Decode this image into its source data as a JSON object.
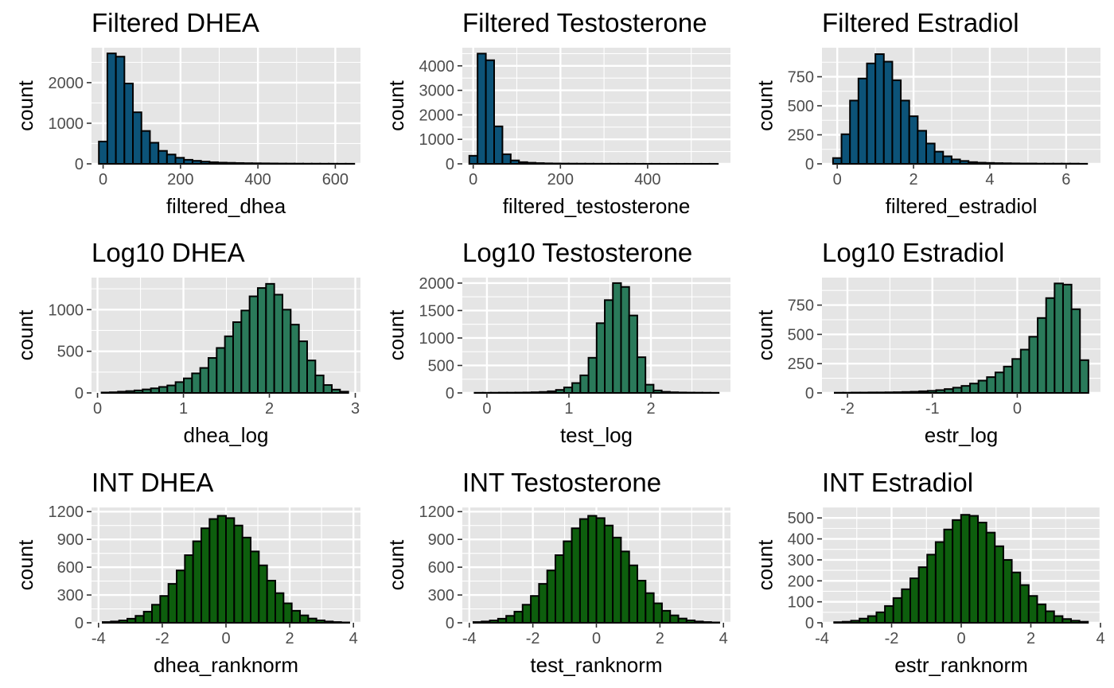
{
  "colors": {
    "filtered": "#0c5378",
    "log": "#2a7a5a",
    "int": "#0d5e0d",
    "panel_background": "#e5e5e5"
  },
  "chart_data": [
    {
      "type": "bar",
      "title": "Filtered DHEA",
      "xlabel": "filtered_dhea",
      "ylabel": "count",
      "fill": "filtered",
      "xlim": [
        -30,
        665
      ],
      "ylim": [
        0,
        2860
      ],
      "xticks": [
        0,
        200,
        400,
        600
      ],
      "xtick_labels": [
        "0",
        "200",
        "400",
        "600"
      ],
      "yticks": [
        0,
        1000,
        2000
      ],
      "ytick_labels": [
        "0",
        "1000",
        "2000"
      ],
      "bin_start": -11,
      "bin_width": 22,
      "values": [
        550,
        2720,
        2640,
        1980,
        1270,
        810,
        520,
        320,
        230,
        150,
        100,
        75,
        55,
        40,
        30,
        25,
        20,
        16,
        14,
        12,
        10,
        8,
        7,
        6,
        5,
        5,
        4,
        4,
        3,
        3
      ]
    },
    {
      "type": "bar",
      "title": "Filtered Testosterone",
      "xlabel": "filtered_testosterone",
      "ylabel": "count",
      "fill": "filtered",
      "xlim": [
        -25,
        590
      ],
      "ylim": [
        0,
        4740
      ],
      "xticks": [
        0,
        200,
        400
      ],
      "xtick_labels": [
        "0",
        "200",
        "400"
      ],
      "yticks": [
        0,
        1000,
        2000,
        3000,
        4000
      ],
      "ytick_labels": [
        "0",
        "1000",
        "2000",
        "3000",
        "4000"
      ],
      "bin_start": -9,
      "bin_width": 19,
      "values": [
        330,
        4500,
        4230,
        1530,
        390,
        140,
        70,
        45,
        30,
        20,
        15,
        12,
        10,
        8,
        7,
        6,
        5,
        5,
        4,
        4,
        3,
        3,
        3,
        2,
        2,
        2,
        2,
        2,
        2,
        2
      ]
    },
    {
      "type": "bar",
      "title": "Filtered Estradiol",
      "xlabel": "filtered_estradiol",
      "ylabel": "count",
      "fill": "filtered",
      "xlim": [
        -0.4,
        6.9
      ],
      "ylim": [
        0,
        1000
      ],
      "xticks": [
        0,
        2,
        4,
        6
      ],
      "xtick_labels": [
        "0",
        "2",
        "4",
        "6"
      ],
      "yticks": [
        0,
        250,
        500,
        750
      ],
      "ytick_labels": [
        "0",
        "250",
        "500",
        "750"
      ],
      "bin_start": -0.11,
      "bin_width": 0.222,
      "values": [
        50,
        255,
        545,
        735,
        865,
        945,
        880,
        720,
        545,
        410,
        285,
        175,
        105,
        65,
        38,
        25,
        15,
        10,
        8,
        6,
        5,
        4,
        3,
        3,
        2,
        2,
        2,
        2,
        2,
        1
      ]
    },
    {
      "type": "bar",
      "title": "Log10 DHEA",
      "xlabel": "dhea_log",
      "ylabel": "count",
      "fill": "log",
      "xlim": [
        -0.07,
        3.06
      ],
      "ylim": [
        0,
        1385
      ],
      "xticks": [
        0,
        1,
        2,
        3
      ],
      "xtick_labels": [
        "0",
        "1",
        "2",
        "3"
      ],
      "yticks": [
        0,
        500,
        1000
      ],
      "ytick_labels": [
        "0",
        "500",
        "1000"
      ],
      "bin_start": 0.047,
      "bin_width": 0.0957,
      "values": [
        5,
        8,
        15,
        22,
        30,
        42,
        55,
        72,
        90,
        130,
        175,
        235,
        300,
        420,
        540,
        680,
        850,
        990,
        1160,
        1260,
        1310,
        1180,
        1000,
        820,
        620,
        390,
        210,
        95,
        40,
        15
      ]
    },
    {
      "type": "bar",
      "title": "Log10 Testosterone",
      "xlabel": "test_log",
      "ylabel": "count",
      "fill": "log",
      "xlim": [
        -0.3,
        2.97
      ],
      "ylim": [
        0,
        2100
      ],
      "xticks": [
        0,
        1,
        2
      ],
      "xtick_labels": [
        "0",
        "1",
        "2"
      ],
      "yticks": [
        0,
        500,
        1000,
        1500,
        2000
      ],
      "ytick_labels": [
        "0",
        "500",
        "1000",
        "1500",
        "2000"
      ],
      "bin_start": -0.15,
      "bin_width": 0.0992,
      "values": [
        3,
        3,
        4,
        5,
        5,
        6,
        8,
        12,
        18,
        30,
        55,
        100,
        180,
        320,
        640,
        1270,
        1690,
        2000,
        1930,
        1410,
        650,
        150,
        45,
        20,
        12,
        8,
        6,
        5,
        4,
        3
      ]
    },
    {
      "type": "bar",
      "title": "Log10 Estradiol",
      "xlabel": "estr_log",
      "ylabel": "count",
      "fill": "log",
      "xlim": [
        -2.3,
        0.98
      ],
      "ylim": [
        0,
        985
      ],
      "xticks": [
        -2,
        -1,
        0
      ],
      "xtick_labels": [
        "-2",
        "-1",
        "0"
      ],
      "yticks": [
        0,
        250,
        500,
        750
      ],
      "ytick_labels": [
        "0",
        "250",
        "500",
        "750"
      ],
      "bin_start": -2.15,
      "bin_width": 0.0996,
      "values": [
        2,
        2,
        3,
        3,
        4,
        4,
        5,
        6,
        8,
        10,
        14,
        18,
        24,
        33,
        45,
        60,
        80,
        105,
        135,
        175,
        225,
        290,
        370,
        480,
        640,
        810,
        935,
        925,
        715,
        280
      ]
    },
    {
      "type": "bar",
      "title": "INT DHEA",
      "xlabel": "dhea_ranknorm",
      "ylabel": "count",
      "fill": "int",
      "xlim": [
        -4.22,
        4.22
      ],
      "ylim": [
        0,
        1245
      ],
      "xticks": [
        -4,
        -2,
        0,
        2,
        4
      ],
      "xtick_labels": [
        "-4",
        "-2",
        "0",
        "2",
        "4"
      ],
      "yticks": [
        0,
        300,
        600,
        900,
        1200
      ],
      "ytick_labels": [
        "0",
        "300",
        "600",
        "900",
        "1200"
      ],
      "bin_start": -3.87,
      "bin_width": 0.258,
      "values": [
        8,
        14,
        25,
        44,
        75,
        120,
        195,
        290,
        420,
        565,
        730,
        880,
        1020,
        1120,
        1155,
        1130,
        1050,
        920,
        770,
        620,
        455,
        320,
        210,
        130,
        80,
        46,
        26,
        14,
        8,
        4
      ]
    },
    {
      "type": "bar",
      "title": "INT Testosterone",
      "xlabel": "test_ranknorm",
      "ylabel": "count",
      "fill": "int",
      "xlim": [
        -4.22,
        4.22
      ],
      "ylim": [
        0,
        1245
      ],
      "xticks": [
        -4,
        -2,
        0,
        2,
        4
      ],
      "xtick_labels": [
        "-4",
        "-2",
        "0",
        "2",
        "4"
      ],
      "yticks": [
        0,
        300,
        600,
        900,
        1200
      ],
      "ytick_labels": [
        "0",
        "300",
        "600",
        "900",
        "1200"
      ],
      "bin_start": -3.87,
      "bin_width": 0.258,
      "values": [
        8,
        14,
        25,
        44,
        75,
        120,
        195,
        290,
        420,
        565,
        730,
        880,
        1020,
        1120,
        1155,
        1130,
        1050,
        920,
        770,
        620,
        455,
        320,
        210,
        130,
        80,
        46,
        26,
        14,
        8,
        4
      ]
    },
    {
      "type": "bar",
      "title": "INT Estradiol",
      "xlabel": "estr_ranknorm",
      "ylabel": "count",
      "fill": "int",
      "xlim": [
        -4.0,
        4.0
      ],
      "ylim": [
        0,
        550
      ],
      "xticks": [
        -4,
        -2,
        0,
        2,
        4
      ],
      "xtick_labels": [
        "-4",
        "-2",
        "0",
        "2",
        "4"
      ],
      "yticks": [
        0,
        100,
        200,
        300,
        400,
        500
      ],
      "ytick_labels": [
        "0",
        "100",
        "200",
        "300",
        "400",
        "500"
      ],
      "bin_start": -3.65,
      "bin_width": 0.243,
      "values": [
        3,
        5,
        10,
        20,
        32,
        50,
        80,
        118,
        160,
        212,
        265,
        325,
        385,
        445,
        490,
        515,
        510,
        478,
        430,
        365,
        300,
        240,
        180,
        128,
        88,
        55,
        32,
        18,
        10,
        5
      ]
    }
  ]
}
